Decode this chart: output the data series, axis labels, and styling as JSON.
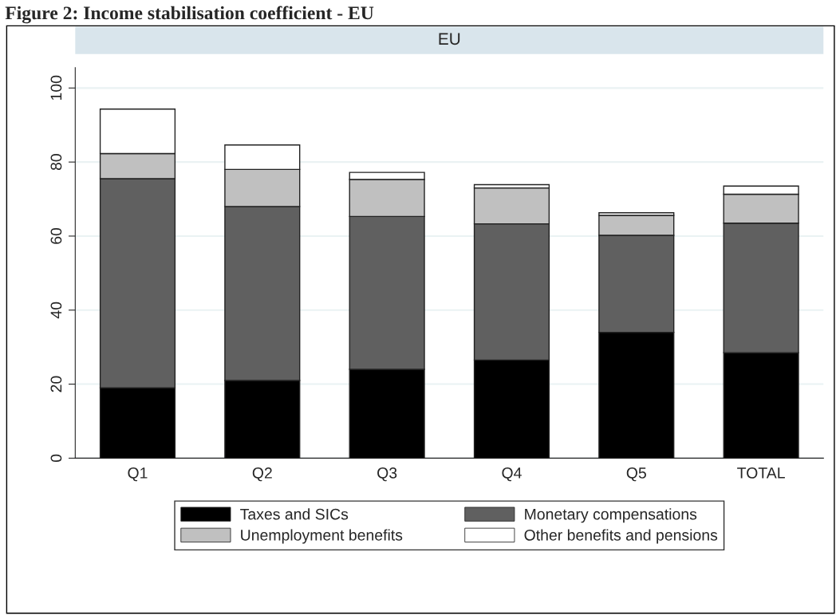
{
  "chart_data": {
    "type": "bar",
    "stacked": true,
    "title": "Figure 2: Income stabilisation coefficient - EU",
    "subtitle": "EU",
    "categories": [
      "Q1",
      "Q2",
      "Q3",
      "Q4",
      "Q5",
      "TOTAL"
    ],
    "series": [
      {
        "name": "Taxes and SICs",
        "color": "#000000",
        "values": [
          19,
          21,
          24,
          26.5,
          34,
          28.5
        ]
      },
      {
        "name": "Monetary compensations",
        "color": "#606060",
        "values": [
          56.5,
          47,
          41.3,
          36.8,
          26.2,
          35
        ]
      },
      {
        "name": "Unemployment benefits",
        "color": "#c0c0c0",
        "values": [
          6.8,
          10,
          10,
          9.7,
          5.4,
          7.8
        ]
      },
      {
        "name": "Other benefits and pensions",
        "color": "#ffffff",
        "values": [
          12,
          6.6,
          1.9,
          0.9,
          0.7,
          2.2
        ]
      }
    ],
    "ylim": [
      0,
      105.5
    ],
    "yticks": [
      0,
      20,
      40,
      60,
      80,
      100
    ],
    "grid": "y",
    "legend": "bottom"
  }
}
